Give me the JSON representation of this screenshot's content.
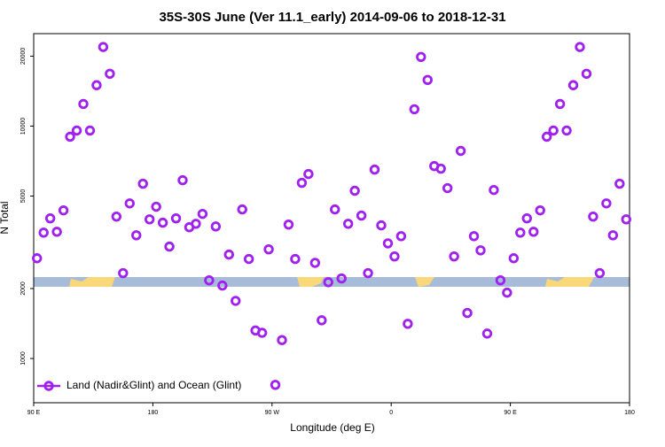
{
  "chart_data": {
    "type": "scatter",
    "title": "35S-30S June (Ver 11.1_early)   2014-09-06 to 2018-12-31",
    "xlabel": "Longitude (deg E)",
    "ylabel": "N Total",
    "log_y": true,
    "legend": "bottom-left",
    "xlim": [
      90,
      540
    ],
    "xticks": [
      {
        "value": 90,
        "label": "90 E"
      },
      {
        "value": 180,
        "label": "180"
      },
      {
        "value": 270,
        "label": "90 W"
      },
      {
        "value": 360,
        "label": "0"
      },
      {
        "value": 450,
        "label": "90 E"
      },
      {
        "value": 540,
        "label": "180"
      }
    ],
    "ylim": [
      645,
      25000
    ],
    "yticks": [
      1000,
      2000,
      5000,
      10000,
      20000
    ],
    "x": [
      92.5,
      97.5,
      102.5,
      107.5,
      112.5,
      117.5,
      122.5,
      127.5,
      132.5,
      137.5,
      142.5,
      147.5,
      152.5,
      157.5,
      162.5,
      167.5,
      172.5,
      177.5,
      182.5,
      187.5,
      192.5,
      197.5,
      202.5,
      207.5,
      212.5,
      217.5,
      222.5,
      227.5,
      232.5,
      237.5,
      242.5,
      247.5,
      252.5,
      257.5,
      262.5,
      267.5,
      272.5,
      277.5,
      282.5,
      287.5,
      292.5,
      297.5,
      302.5,
      307.5,
      312.5,
      317.5,
      322.5,
      327.5,
      332.5,
      337.5,
      342.5,
      347.5,
      352.5,
      357.5,
      362.5,
      367.5,
      372.5,
      377.5,
      382.5,
      387.5,
      392.5,
      397.5,
      402.5,
      407.5,
      412.5,
      417.5,
      422.5,
      427.5,
      432.5,
      437.5,
      442.5,
      447.5,
      452.5,
      457.5,
      462.5,
      467.5,
      472.5,
      477.5,
      482.5,
      487.5,
      492.5,
      497.5,
      502.5,
      507.5,
      512.5,
      517.5,
      522.5,
      527.5,
      532.5,
      537.5
    ],
    "series": [
      {
        "name": "Land (Nadir&Glint) and Ocean (Glint)",
        "color": "#a020f0",
        "values": [
          2700,
          3480,
          4010,
          3510,
          4340,
          9000,
          9570,
          12450,
          9570,
          15000,
          21900,
          16800,
          4080,
          2330,
          4650,
          3390,
          5650,
          3970,
          4500,
          3840,
          3030,
          4010,
          5850,
          3670,
          3800,
          4190,
          2170,
          3700,
          2060,
          2800,
          1770,
          4380,
          2680,
          1320,
          1290,
          2950,
          770,
          1200,
          3770,
          2680,
          5700,
          6220,
          2580,
          1460,
          2130,
          4380,
          2210,
          3800,
          5270,
          4120,
          2330,
          6500,
          3740,
          3130,
          2750,
          3360,
          1410,
          11820,
          19850,
          15800,
          6730,
          6560,
          5410,
          2750,
          7820,
          1570,
          3360,
          2920,
          1280,
          5310,
          2170,
          1920,
          2700,
          3480,
          4010,
          3510,
          4340,
          9000,
          9570,
          12450,
          9570,
          15000,
          21900,
          16800,
          4080,
          2330,
          4650,
          3390,
          5650,
          3970
        ]
      }
    ]
  }
}
